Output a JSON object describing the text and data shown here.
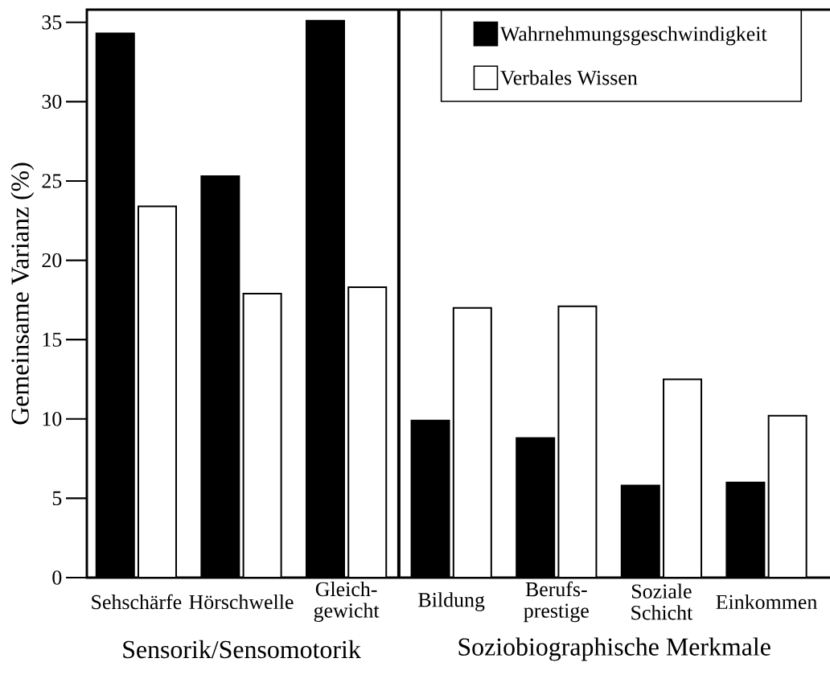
{
  "chart_data": {
    "type": "bar",
    "ylabel": "Gemeinsame Varianz (%)",
    "categories": [
      "Sehschärfe",
      "Hörschwelle",
      "Gleich-gewicht",
      "Bildung",
      "Berufs-prestige",
      "Soziale Schicht",
      "Einkommen"
    ],
    "series": [
      {
        "name": "Wahrnehmungsgeschwindigkeit",
        "color": "#000000",
        "values": [
          34.3,
          25.3,
          35.1,
          9.9,
          8.8,
          5.8,
          6.0
        ]
      },
      {
        "name": "Verbales Wissen",
        "color": "#ffffff",
        "values": [
          23.4,
          17.9,
          18.3,
          17.0,
          17.1,
          12.5,
          10.2
        ]
      }
    ],
    "ylim": [
      0,
      35.8
    ],
    "yticks": [
      0,
      5,
      10,
      15,
      20,
      25,
      30,
      35
    ],
    "annotations": [
      "Sensorik/Sensomotorik",
      "Soziobiographische Merkmale"
    ],
    "legend": "top right"
  }
}
